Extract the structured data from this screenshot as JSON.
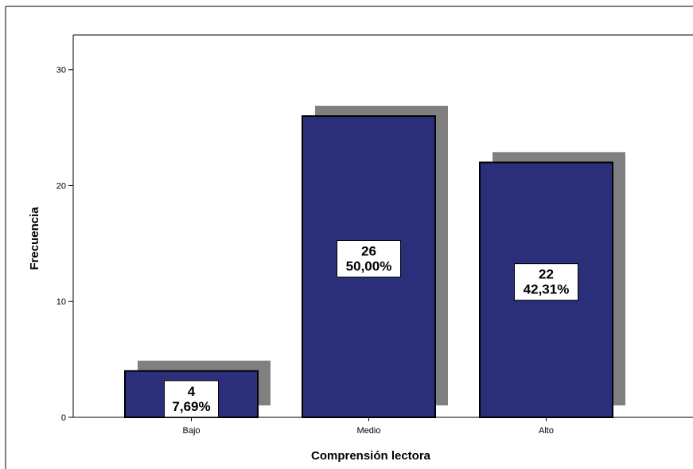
{
  "chart_data": {
    "type": "bar",
    "categories": [
      "Bajo",
      "Medio",
      "Alto"
    ],
    "values": [
      4,
      26,
      22
    ],
    "percent_labels": [
      "7,69%",
      "50,00%",
      "42,31%"
    ],
    "xlabel": "Comprensión lectora",
    "ylabel": "Frecuencia",
    "ylim": [
      0,
      33
    ],
    "yticks": [
      0,
      10,
      20,
      30
    ],
    "bar_color": "#2b2e78",
    "shadow_color": "#808080",
    "grid": false,
    "legend": "none"
  }
}
